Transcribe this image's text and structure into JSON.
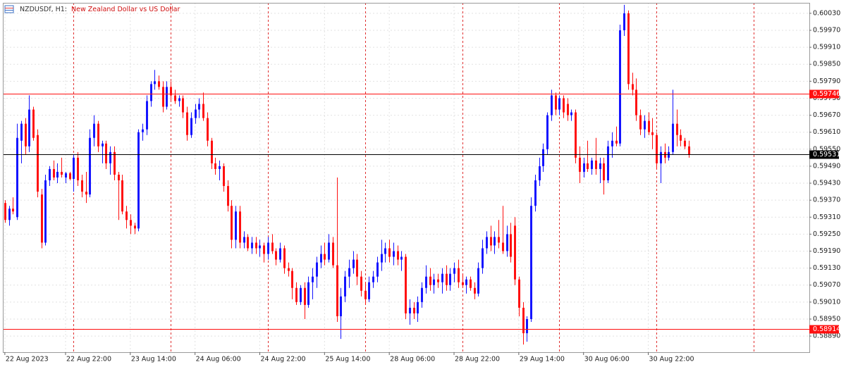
{
  "chart_data": {
    "type": "candlestick",
    "symbol": "NZDUSDf, H1:",
    "description": "New Zealand Dollar vs US Dollar",
    "up_color": "#1414ff",
    "down_color": "#ff1010",
    "grid": true,
    "xlim": [
      -0.5,
      198.8
    ],
    "xticks": [
      {
        "value": 0,
        "label": "22 Aug 2023"
      },
      {
        "value": 15,
        "label": "22 Aug 22:00"
      },
      {
        "value": 31,
        "label": "23 Aug 14:00"
      },
      {
        "value": 47,
        "label": "24 Aug 06:00"
      },
      {
        "value": 63,
        "label": "24 Aug 22:00"
      },
      {
        "value": 79,
        "label": "25 Aug 14:00"
      },
      {
        "value": 95,
        "label": "28 Aug 06:00"
      },
      {
        "value": 111,
        "label": "28 Aug 22:00"
      },
      {
        "value": 127,
        "label": "29 Aug 14:00"
      },
      {
        "value": 143,
        "label": "30 Aug 06:00"
      },
      {
        "value": 159,
        "label": "30 Aug 22:00"
      }
    ],
    "separators": [
      17,
      41,
      65,
      89,
      113,
      137,
      161,
      185
    ],
    "ylim": [
      0.58833,
      0.60067
    ],
    "yticks": [
      {
        "value": 0.6003,
        "label": "0.60030"
      },
      {
        "value": 0.5997,
        "label": "0.59970"
      },
      {
        "value": 0.5991,
        "label": "0.59910"
      },
      {
        "value": 0.5985,
        "label": "0.59850"
      },
      {
        "value": 0.5979,
        "label": "0.59790"
      },
      {
        "value": 0.5973,
        "label": "0.59730"
      },
      {
        "value": 0.5967,
        "label": "0.59670"
      },
      {
        "value": 0.5961,
        "label": "0.59610"
      },
      {
        "value": 0.5955,
        "label": "0.59550"
      },
      {
        "value": 0.5949,
        "label": "0.59490"
      },
      {
        "value": 0.5943,
        "label": "0.59430"
      },
      {
        "value": 0.5937,
        "label": "0.59370"
      },
      {
        "value": 0.5931,
        "label": "0.59310"
      },
      {
        "value": 0.5925,
        "label": "0.59250"
      },
      {
        "value": 0.5919,
        "label": "0.59190"
      },
      {
        "value": 0.5913,
        "label": "0.59130"
      },
      {
        "value": 0.5907,
        "label": "0.59070"
      },
      {
        "value": 0.5901,
        "label": "0.59010"
      },
      {
        "value": 0.5895,
        "label": "0.58950"
      },
      {
        "value": 0.5889,
        "label": "0.58890"
      }
    ],
    "hlines": [
      {
        "value": 0.59746,
        "color": "#ff1010"
      },
      {
        "value": 0.58914,
        "color": "#ff1010"
      },
      {
        "value": 0.59531,
        "color": "#000000"
      }
    ],
    "open": [
      0.5936,
      0.593,
      0.5934,
      0.5931,
      0.5958,
      0.5964,
      0.5956,
      0.5969,
      0.596,
      0.5939,
      0.5922,
      0.5944,
      0.5948,
      0.5945,
      0.5947,
      0.5945,
      0.59465,
      0.59445,
      0.5952,
      0.5944,
      0.594,
      0.5939,
      0.5959,
      0.5964,
      0.5956,
      0.5957,
      0.595,
      0.5954,
      0.5946,
      0.5944,
      0.5933,
      0.593,
      0.5928,
      0.5927,
      0.5961,
      0.5962,
      0.5972,
      0.5978,
      0.5979,
      0.5977,
      0.597,
      0.5977,
      0.5974,
      0.5972,
      0.5973,
      0.5968,
      0.596,
      0.5966,
      0.5969,
      0.5971,
      0.5966,
      0.5958,
      0.595,
      0.5948,
      0.5949,
      0.5942,
      0.5935,
      0.5923,
      0.5933,
      0.5922,
      0.5924,
      0.592,
      0.5922,
      0.592,
      0.5921,
      0.5918,
      0.5922,
      0.5919,
      0.5916,
      0.592,
      0.5913,
      0.5912,
      0.5906,
      0.5901,
      0.5906,
      0.59,
      0.5908,
      0.591,
      0.5915,
      0.5918,
      0.5916,
      0.5922,
      0.5914,
      0.5896,
      0.5903,
      0.591,
      0.5913,
      0.5916,
      0.591,
      0.5905,
      0.5902,
      0.5908,
      0.591,
      0.5915,
      0.5918,
      0.592,
      0.5917,
      0.5919,
      0.5916,
      0.5917,
      0.5897,
      0.5899,
      0.5897,
      0.5901,
      0.5906,
      0.591,
      0.5907,
      0.5909,
      0.5908,
      0.5911,
      0.5907,
      0.5911,
      0.5913,
      0.5908,
      0.5907,
      0.5909,
      0.5906,
      0.5904,
      0.5913,
      0.592,
      0.5924,
      0.5921,
      0.5924,
      0.5922,
      0.5919,
      0.5925,
      0.5928,
      0.5909,
      0.5899,
      0.589,
      0.5895,
      0.5935,
      0.5944,
      0.5949,
      0.5955,
      0.5967,
      0.5974,
      0.5969,
      0.5973,
      0.5971,
      0.5967,
      0.5968,
      0.5952,
      0.5947,
      0.595,
      0.5948,
      0.5951,
      0.5948,
      0.595,
      0.5944,
      0.5956,
      0.5958,
      0.5957,
      0.5997,
      0.6003,
      0.5978,
      0.5976,
      0.5967,
      0.5962,
      0.5965,
      0.5961,
      0.596,
      0.595,
      0.5954,
      0.5952,
      0.5954,
      0.5964,
      0.596,
      0.5958,
      0.5956
    ],
    "high": [
      0.5937,
      0.5935,
      0.5938,
      0.5964,
      0.5965,
      0.5966,
      0.5974,
      0.597,
      0.5962,
      0.5941,
      0.5946,
      0.5949,
      0.5951,
      0.595,
      0.5952,
      0.5947,
      0.5947,
      0.5953,
      0.5954,
      0.5946,
      0.5947,
      0.5962,
      0.5967,
      0.5965,
      0.5958,
      0.5958,
      0.5956,
      0.5956,
      0.5947,
      0.5946,
      0.5935,
      0.5932,
      0.5929,
      0.5962,
      0.5964,
      0.5974,
      0.5979,
      0.5983,
      0.5981,
      0.5979,
      0.5979,
      0.5979,
      0.5976,
      0.5974,
      0.5974,
      0.597,
      0.5968,
      0.5971,
      0.5973,
      0.5975,
      0.5968,
      0.5959,
      0.5952,
      0.5951,
      0.595,
      0.5944,
      0.5937,
      0.5935,
      0.5935,
      0.5926,
      0.5925,
      0.5924,
      0.5924,
      0.5923,
      0.5922,
      0.5924,
      0.5925,
      0.592,
      0.5922,
      0.5921,
      0.5915,
      0.5913,
      0.5908,
      0.5907,
      0.5908,
      0.591,
      0.5913,
      0.5917,
      0.5921,
      0.5922,
      0.5925,
      0.5924,
      0.5945,
      0.5906,
      0.5912,
      0.5916,
      0.5919,
      0.5918,
      0.5912,
      0.5908,
      0.591,
      0.5912,
      0.5917,
      0.5923,
      0.5922,
      0.5923,
      0.5922,
      0.5921,
      0.5919,
      0.5918,
      0.5902,
      0.5901,
      0.5903,
      0.5908,
      0.5914,
      0.5913,
      0.5911,
      0.5911,
      0.5913,
      0.5914,
      0.5913,
      0.5915,
      0.5916,
      0.5911,
      0.591,
      0.591,
      0.5908,
      0.5915,
      0.5923,
      0.5926,
      0.5928,
      0.5926,
      0.593,
      0.5935,
      0.5928,
      0.5929,
      0.5931,
      0.591,
      0.5901,
      0.5896,
      0.5938,
      0.5946,
      0.5952,
      0.5957,
      0.5968,
      0.5976,
      0.5975,
      0.5974,
      0.5974,
      0.5973,
      0.5969,
      0.5969,
      0.5956,
      0.5952,
      0.5958,
      0.5952,
      0.5959,
      0.5952,
      0.5952,
      0.5958,
      0.5961,
      0.5963,
      0.5999,
      0.6006,
      0.6004,
      0.5982,
      0.598,
      0.5969,
      0.5967,
      0.5968,
      0.5966,
      0.5961,
      0.5956,
      0.5957,
      0.5956,
      0.5976,
      0.5969,
      0.5962,
      0.5959,
      0.5958
    ],
    "low": [
      0.5929,
      0.5928,
      0.5932,
      0.593,
      0.595,
      0.5953,
      0.5954,
      0.5958,
      0.5938,
      0.592,
      0.5921,
      0.5942,
      0.5944,
      0.5943,
      0.5945,
      0.5943,
      0.5944,
      0.594,
      0.5942,
      0.5938,
      0.5936,
      0.5938,
      0.5956,
      0.5954,
      0.595,
      0.5948,
      0.5946,
      0.5944,
      0.593,
      0.5932,
      0.5927,
      0.5925,
      0.5925,
      0.5926,
      0.5958,
      0.596,
      0.597,
      0.5976,
      0.5976,
      0.5968,
      0.5969,
      0.5972,
      0.5971,
      0.597,
      0.5966,
      0.5958,
      0.5959,
      0.5964,
      0.5966,
      0.5965,
      0.5956,
      0.5948,
      0.5946,
      0.5944,
      0.594,
      0.5933,
      0.592,
      0.592,
      0.592,
      0.592,
      0.5919,
      0.5918,
      0.5918,
      0.5917,
      0.5915,
      0.5916,
      0.5918,
      0.5914,
      0.5915,
      0.5911,
      0.591,
      0.5902,
      0.59,
      0.59,
      0.5895,
      0.5899,
      0.5902,
      0.5906,
      0.5913,
      0.5914,
      0.5915,
      0.5913,
      0.5894,
      0.5888,
      0.5901,
      0.5906,
      0.5911,
      0.5907,
      0.5903,
      0.59,
      0.5901,
      0.5906,
      0.5908,
      0.5912,
      0.5915,
      0.5915,
      0.5914,
      0.5914,
      0.5912,
      0.5895,
      0.5893,
      0.5895,
      0.5894,
      0.5899,
      0.5904,
      0.5905,
      0.5904,
      0.5906,
      0.5904,
      0.5905,
      0.5905,
      0.5908,
      0.5906,
      0.5906,
      0.5904,
      0.5905,
      0.5902,
      0.5903,
      0.5911,
      0.5918,
      0.5919,
      0.5918,
      0.592,
      0.5918,
      0.5917,
      0.5915,
      0.5907,
      0.5896,
      0.5886,
      0.5887,
      0.5894,
      0.5933,
      0.5942,
      0.5947,
      0.5953,
      0.5965,
      0.5967,
      0.5967,
      0.5966,
      0.5965,
      0.5965,
      0.595,
      0.5943,
      0.5945,
      0.5947,
      0.5946,
      0.5946,
      0.5943,
      0.5939,
      0.5943,
      0.5952,
      0.5956,
      0.5956,
      0.5995,
      0.5976,
      0.5974,
      0.5965,
      0.596,
      0.5959,
      0.596,
      0.5955,
      0.5948,
      0.5943,
      0.595,
      0.5951,
      0.5953,
      0.5956,
      0.5956,
      0.5955,
      0.5952
    ],
    "close": [
      0.593,
      0.5934,
      0.5933,
      0.5959,
      0.5964,
      0.5956,
      0.5969,
      0.5959,
      0.594,
      0.5922,
      0.5944,
      0.5948,
      0.5945,
      0.5947,
      0.5946,
      0.59465,
      0.59445,
      0.5952,
      0.5944,
      0.594,
      0.5939,
      0.5959,
      0.5964,
      0.5956,
      0.5957,
      0.595,
      0.5954,
      0.5946,
      0.5944,
      0.5933,
      0.593,
      0.5928,
      0.5927,
      0.5961,
      0.5962,
      0.5972,
      0.5978,
      0.5979,
      0.5977,
      0.597,
      0.5977,
      0.5974,
      0.5972,
      0.5973,
      0.5968,
      0.596,
      0.5966,
      0.5969,
      0.5971,
      0.5966,
      0.5958,
      0.595,
      0.5948,
      0.5949,
      0.5942,
      0.5935,
      0.5923,
      0.5933,
      0.5922,
      0.5924,
      0.592,
      0.5922,
      0.592,
      0.5921,
      0.5918,
      0.5922,
      0.5919,
      0.5916,
      0.592,
      0.5913,
      0.5912,
      0.5906,
      0.5901,
      0.5906,
      0.59,
      0.5908,
      0.591,
      0.5915,
      0.5918,
      0.5916,
      0.5922,
      0.5914,
      0.5896,
      0.5903,
      0.591,
      0.5913,
      0.5916,
      0.591,
      0.5905,
      0.5902,
      0.5908,
      0.591,
      0.5915,
      0.5918,
      0.592,
      0.5917,
      0.5919,
      0.5916,
      0.5917,
      0.5897,
      0.5899,
      0.5897,
      0.5901,
      0.5906,
      0.591,
      0.5907,
      0.5909,
      0.5908,
      0.5911,
      0.5907,
      0.5911,
      0.5913,
      0.5908,
      0.5907,
      0.5909,
      0.5906,
      0.5904,
      0.5913,
      0.592,
      0.5924,
      0.5921,
      0.5924,
      0.5922,
      0.5919,
      0.5925,
      0.5917,
      0.5909,
      0.5899,
      0.589,
      0.5895,
      0.5935,
      0.5944,
      0.5949,
      0.5955,
      0.5967,
      0.5974,
      0.5969,
      0.5973,
      0.5968,
      0.5967,
      0.5968,
      0.5952,
      0.5947,
      0.595,
      0.5948,
      0.5951,
      0.5948,
      0.595,
      0.5944,
      0.5956,
      0.5958,
      0.5957,
      0.5997,
      0.6003,
      0.5978,
      0.5976,
      0.5967,
      0.5962,
      0.5965,
      0.5961,
      0.596,
      0.595,
      0.5954,
      0.5952,
      0.5954,
      0.5964,
      0.596,
      0.5958,
      0.5956,
      0.59531
    ]
  }
}
